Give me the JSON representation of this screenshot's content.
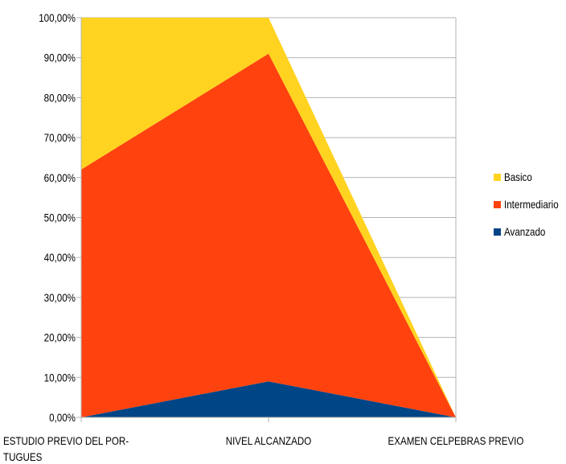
{
  "chart_data": {
    "type": "area",
    "stacked": true,
    "categories": [
      [
        "ESTUDIO PREVIO DEL POR-",
        "TUGUES"
      ],
      [
        "NIVEL ALCANZADO"
      ],
      [
        "EXAMEN CELPEBRAS PREVIO"
      ]
    ],
    "series": [
      {
        "name": "Avanzado",
        "values": [
          0.0,
          9.0,
          0.0
        ],
        "color": "#004586"
      },
      {
        "name": "Intermediario",
        "values": [
          62.0,
          82.0,
          0.0
        ],
        "color": "#ff420e"
      },
      {
        "name": "Basico",
        "values": [
          38.0,
          9.0,
          0.0
        ],
        "color": "#ffd320"
      }
    ],
    "ylim": [
      0,
      100
    ],
    "yticks": [
      "0,00%",
      "10,00%",
      "20,00%",
      "30,00%",
      "40,00%",
      "50,00%",
      "60,00%",
      "70,00%",
      "80,00%",
      "90,00%",
      "100,00%"
    ],
    "grid": true,
    "legend": "right",
    "title": "",
    "xlabel": "",
    "ylabel": ""
  }
}
